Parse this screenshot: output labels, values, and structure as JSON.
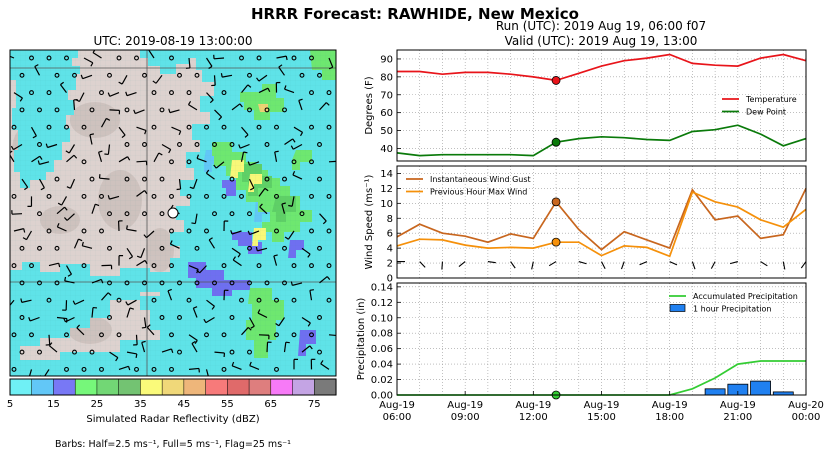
{
  "figure": {
    "title": "HRRR Forecast: RAWHIDE, New Mexico",
    "run_label": "Run (UTC): 2019 Aug 19, 06:00 f07",
    "valid_label": "Valid (UTC): 2019 Aug 19, 13:00"
  },
  "map": {
    "title": "UTC: 2019-08-19 13:00:00",
    "colorbar_label": "Simulated Radar Reflectivity (dBZ)",
    "colorbar_ticks": [
      "5",
      "15",
      "25",
      "35",
      "45",
      "55",
      "65",
      "75"
    ],
    "colorbar_colors": [
      "#6ff0f5",
      "#62c7f7",
      "#7878f5",
      "#76f77a",
      "#72d775",
      "#73c372",
      "#fafa7a",
      "#f0d879",
      "#eeb67a",
      "#f77a7a",
      "#e06a6a",
      "#de7e7e",
      "#f77af7",
      "#c4a4e4",
      "#7a7a7a"
    ],
    "barbs_note": "Barbs: Half=2.5 ms⁻¹, Full=5 ms⁻¹, Flag=25 ms⁻¹"
  },
  "chart_data": [
    {
      "type": "line",
      "panel": "temperature",
      "ylabel": "Degrees (F)",
      "ylim": [
        33,
        95
      ],
      "yticks": [
        "40",
        "50",
        "60",
        "70",
        "80",
        "90"
      ],
      "x_hours": [
        0,
        1,
        2,
        3,
        4,
        5,
        6,
        7,
        8,
        9,
        10,
        11,
        12,
        13,
        14,
        15,
        16,
        17,
        18
      ],
      "series": [
        {
          "name": "Temperature",
          "color": "#e8141a",
          "values": [
            83,
            83,
            81.5,
            82.5,
            82.5,
            81.5,
            80,
            78,
            82,
            86,
            89,
            90.5,
            92.5,
            87.5,
            86.5,
            86,
            90.5,
            92.5,
            89
          ]
        },
        {
          "name": "Dew Point",
          "color": "#0a7a0a",
          "values": [
            37.5,
            36,
            36.5,
            36.5,
            36.5,
            36.5,
            36,
            43.5,
            45.5,
            46.5,
            46,
            45,
            44.5,
            49.5,
            50.5,
            53,
            48,
            41.5,
            45.5
          ]
        }
      ],
      "marker_hour": 7,
      "legend": "right"
    },
    {
      "type": "line",
      "panel": "wind",
      "ylabel": "Wind Speed (ms⁻¹)",
      "ylim": [
        0,
        15
      ],
      "yticks": [
        "0",
        "2",
        "4",
        "6",
        "8",
        "10",
        "12",
        "14"
      ],
      "x_hours": [
        0,
        1,
        2,
        3,
        4,
        5,
        6,
        7,
        8,
        9,
        10,
        11,
        12,
        13,
        14,
        15,
        16,
        17,
        18
      ],
      "series": [
        {
          "name": "Instantaneous Wind Gust",
          "color": "#c8661e",
          "values": [
            5.5,
            7.2,
            6,
            5.6,
            4.8,
            5.9,
            5.3,
            10.2,
            6.5,
            3.8,
            6.2,
            5.1,
            4,
            11.8,
            7.8,
            8.3,
            5.3,
            5.8,
            12
          ]
        },
        {
          "name": "Previous Hour Max Wind",
          "color": "#f5900a",
          "values": [
            4.3,
            5.2,
            5.1,
            4.4,
            4,
            4.1,
            4,
            4.8,
            4.8,
            3,
            4.3,
            4.1,
            2.9,
            11.5,
            10.2,
            9.5,
            7.8,
            6.8,
            9.2
          ]
        }
      ],
      "marker_hour": 7,
      "legend": "top-left"
    },
    {
      "type": "line",
      "panel": "precipitation",
      "ylabel": "Precipitation (in)",
      "ylim": [
        0,
        0.145
      ],
      "yticks": [
        "0.00",
        "0.02",
        "0.04",
        "0.06",
        "0.08",
        "0.10",
        "0.12",
        "0.14"
      ],
      "x_hours": [
        0,
        1,
        2,
        3,
        4,
        5,
        6,
        7,
        8,
        9,
        10,
        11,
        12,
        13,
        14,
        15,
        16,
        17,
        18
      ],
      "series": [
        {
          "name": "Accumulated Precipitation",
          "color": "#33cc33",
          "values": [
            0,
            0,
            0,
            0,
            0,
            0,
            0,
            0,
            0,
            0,
            0,
            0,
            0,
            0.008,
            0.022,
            0.04,
            0.044,
            0.044,
            0.044
          ]
        },
        {
          "name": "1 hour Precipitation",
          "color": "#2080f0",
          "bar_hours": [
            14,
            15,
            16,
            17
          ],
          "values": [
            0.008,
            0.014,
            0.018,
            0.004
          ]
        }
      ],
      "marker_hour": 7,
      "legend": "top-right"
    }
  ],
  "x_axis": {
    "ticks": [
      {
        "hour": 0,
        "l1": "Aug-19",
        "l2": "06:00"
      },
      {
        "hour": 3,
        "l1": "Aug-19",
        "l2": "09:00"
      },
      {
        "hour": 6,
        "l1": "Aug-19",
        "l2": "12:00"
      },
      {
        "hour": 9,
        "l1": "Aug-19",
        "l2": "15:00"
      },
      {
        "hour": 12,
        "l1": "Aug-19",
        "l2": "18:00"
      },
      {
        "hour": 15,
        "l1": "Aug-19",
        "l2": "21:00"
      },
      {
        "hour": 18,
        "l1": "Aug-20",
        "l2": "00:00"
      }
    ]
  }
}
